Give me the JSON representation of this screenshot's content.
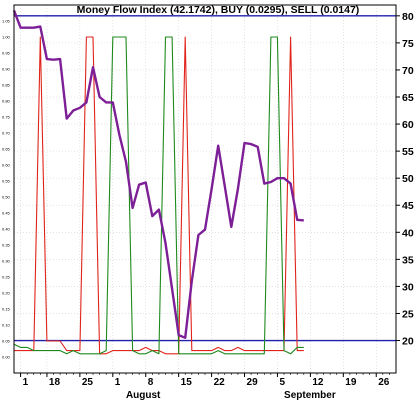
{
  "chart_data": {
    "type": "line",
    "title": "Money Flow Index (42.1742), BUY (0.0295), SELL (0.0147)",
    "y_right": {
      "range": [
        14,
        82
      ],
      "ticks": [
        20,
        25,
        30,
        35,
        40,
        45,
        50,
        55,
        60,
        65,
        70,
        75,
        80
      ]
    },
    "y_left": {
      "range": [
        -0.05,
        1.1
      ],
      "ticks": [
        "0.00",
        "0.05",
        "0.10",
        "0.15",
        "0.20",
        "0.25",
        "0.30",
        "0.35",
        "0.40",
        "0.45",
        "0.50",
        "0.55",
        "0.60",
        "0.65",
        "0.70",
        "0.75",
        "0.80",
        "0.85",
        "0.90",
        "0.95",
        "1.00",
        "1.05"
      ]
    },
    "x_ticks": [
      {
        "day": 1,
        "label": "1"
      },
      {
        "day": 5,
        "label": "18"
      },
      {
        "day": 10,
        "label": "25"
      },
      {
        "day": 15,
        "label": "1"
      },
      {
        "day": 20,
        "label": "8"
      },
      {
        "day": 25,
        "label": "15"
      },
      {
        "day": 30,
        "label": "22"
      },
      {
        "day": 35,
        "label": "29"
      },
      {
        "day": 40,
        "label": "5"
      },
      {
        "day": 45,
        "label": "12"
      },
      {
        "day": 50,
        "label": "19"
      },
      {
        "day": 55,
        "label": "26"
      }
    ],
    "x_range": [
      0,
      58
    ],
    "months": [
      {
        "label": "August",
        "day": 17
      },
      {
        "label": "September",
        "day": 41
      }
    ],
    "reference_lines": [
      80,
      20
    ],
    "series": [
      {
        "name": "MFI",
        "color": "#7d1f96",
        "axis": "right",
        "points": [
          [
            0,
            81
          ],
          [
            1,
            77.8
          ],
          [
            2,
            77.8
          ],
          [
            3,
            77.8
          ],
          [
            4,
            78
          ],
          [
            5,
            72
          ],
          [
            6,
            71.9
          ],
          [
            7,
            72
          ],
          [
            8,
            61
          ],
          [
            9,
            62.5
          ],
          [
            10,
            63
          ],
          [
            11,
            64
          ],
          [
            12,
            70.5
          ],
          [
            13,
            65
          ],
          [
            14,
            64
          ],
          [
            15,
            64
          ],
          [
            16,
            58
          ],
          [
            17,
            53
          ],
          [
            18,
            44.5
          ],
          [
            19,
            48.8
          ],
          [
            20,
            49.2
          ],
          [
            21,
            43
          ],
          [
            22,
            44.2
          ],
          [
            23,
            38
          ],
          [
            24,
            29.5
          ],
          [
            25,
            21
          ],
          [
            26,
            20.5
          ],
          [
            27,
            31
          ],
          [
            28,
            39.5
          ],
          [
            29,
            40.5
          ],
          [
            30,
            48
          ],
          [
            31,
            56
          ],
          [
            32,
            48.5
          ],
          [
            33,
            41
          ],
          [
            34,
            48
          ],
          [
            35,
            56.5
          ],
          [
            36,
            56.3
          ],
          [
            37,
            55.8
          ],
          [
            38,
            49
          ],
          [
            39,
            49.3
          ],
          [
            40,
            50
          ],
          [
            41,
            50
          ],
          [
            42,
            49
          ],
          [
            43,
            42.3
          ],
          [
            44,
            42.2
          ]
        ]
      },
      {
        "name": "BUY",
        "color": "#1e8a1e",
        "axis": "left",
        "points": [
          [
            0,
            0.04
          ],
          [
            1,
            0.03
          ],
          [
            2,
            0.03
          ],
          [
            3,
            0.02
          ],
          [
            4,
            0.02
          ],
          [
            5,
            0.02
          ],
          [
            6,
            0.02
          ],
          [
            7,
            0.02
          ],
          [
            8,
            0.01
          ],
          [
            9,
            0.02
          ],
          [
            10,
            0.01
          ],
          [
            11,
            0.01
          ],
          [
            12,
            0.01
          ],
          [
            13,
            0.01
          ],
          [
            14,
            0.02
          ],
          [
            15,
            1.0
          ],
          [
            16,
            1.0
          ],
          [
            17,
            1.0
          ],
          [
            18,
            0.02
          ],
          [
            19,
            0.01
          ],
          [
            20,
            0.01
          ],
          [
            21,
            0.02
          ],
          [
            22,
            0.01
          ],
          [
            23,
            1.0
          ],
          [
            24,
            1.0
          ],
          [
            25,
            0.01
          ],
          [
            26,
            0.01
          ],
          [
            27,
            0.01
          ],
          [
            28,
            0.01
          ],
          [
            29,
            0.01
          ],
          [
            30,
            0.01
          ],
          [
            31,
            0.02
          ],
          [
            32,
            0.01
          ],
          [
            33,
            0.01
          ],
          [
            34,
            0.01
          ],
          [
            35,
            0.01
          ],
          [
            36,
            0.01
          ],
          [
            37,
            0.01
          ],
          [
            38,
            0.01
          ],
          [
            39,
            1.0
          ],
          [
            40,
            1.0
          ],
          [
            41,
            0.02
          ],
          [
            42,
            0.01
          ],
          [
            43,
            0.03
          ],
          [
            44,
            0.03
          ]
        ]
      },
      {
        "name": "SELL",
        "color": "#e0241c",
        "axis": "left",
        "points": [
          [
            0,
            0.02
          ],
          [
            1,
            0.02
          ],
          [
            2,
            0.02
          ],
          [
            3,
            0.02
          ],
          [
            4,
            1.0
          ],
          [
            5,
            0.05
          ],
          [
            6,
            0.05
          ],
          [
            7,
            0.05
          ],
          [
            8,
            0.02
          ],
          [
            9,
            0.02
          ],
          [
            10,
            0.02
          ],
          [
            11,
            1.0
          ],
          [
            12,
            1.0
          ],
          [
            13,
            0.01
          ],
          [
            14,
            0.01
          ],
          [
            15,
            0.02
          ],
          [
            16,
            0.02
          ],
          [
            17,
            0.02
          ],
          [
            18,
            0.02
          ],
          [
            19,
            0.02
          ],
          [
            20,
            0.03
          ],
          [
            21,
            0.02
          ],
          [
            22,
            0.02
          ],
          [
            23,
            0.01
          ],
          [
            24,
            0.01
          ],
          [
            25,
            0.01
          ],
          [
            26,
            1.0
          ],
          [
            27,
            0.02
          ],
          [
            28,
            0.02
          ],
          [
            29,
            0.02
          ],
          [
            30,
            0.02
          ],
          [
            31,
            0.03
          ],
          [
            32,
            0.02
          ],
          [
            33,
            0.02
          ],
          [
            34,
            0.03
          ],
          [
            35,
            0.02
          ],
          [
            36,
            0.02
          ],
          [
            37,
            0.02
          ],
          [
            38,
            0.02
          ],
          [
            39,
            0.02
          ],
          [
            40,
            0.02
          ],
          [
            41,
            0.02
          ],
          [
            42,
            1.0
          ],
          [
            43,
            0.02
          ],
          [
            44,
            0.02
          ]
        ]
      }
    ],
    "grid": true,
    "background": "#ffffff",
    "reference_line_color": "#1f1fae"
  }
}
